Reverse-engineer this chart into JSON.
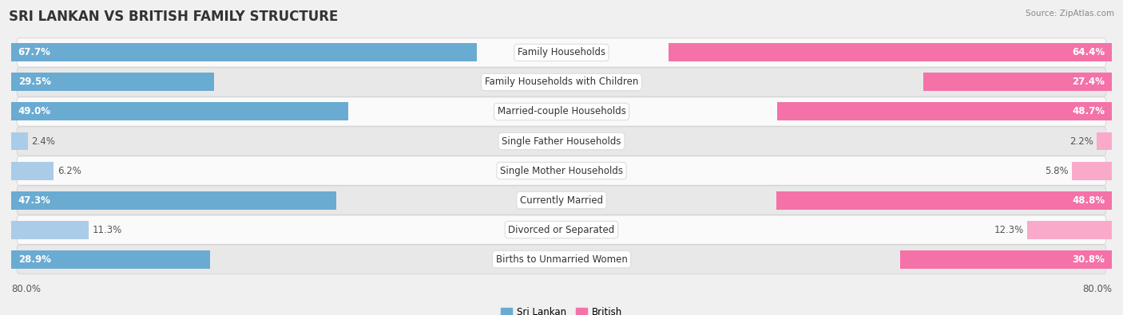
{
  "title": "SRI LANKAN VS BRITISH FAMILY STRUCTURE",
  "source": "Source: ZipAtlas.com",
  "categories": [
    "Family Households",
    "Family Households with Children",
    "Married-couple Households",
    "Single Father Households",
    "Single Mother Households",
    "Currently Married",
    "Divorced or Separated",
    "Births to Unmarried Women"
  ],
  "sri_lankan": [
    67.7,
    29.5,
    49.0,
    2.4,
    6.2,
    47.3,
    11.3,
    28.9
  ],
  "british": [
    64.4,
    27.4,
    48.7,
    2.2,
    5.8,
    48.8,
    12.3,
    30.8
  ],
  "max_val": 80.0,
  "sri_lankan_color_strong": "#6aabd2",
  "sri_lankan_color_light": "#aacce8",
  "british_color_strong": "#f472a8",
  "british_color_light": "#f9aaca",
  "background_color": "#f0f0f0",
  "row_bg_light": "#fafafa",
  "row_bg_dark": "#e8e8e8",
  "label_fontsize": 8.5,
  "value_fontsize": 8.5,
  "title_fontsize": 12
}
